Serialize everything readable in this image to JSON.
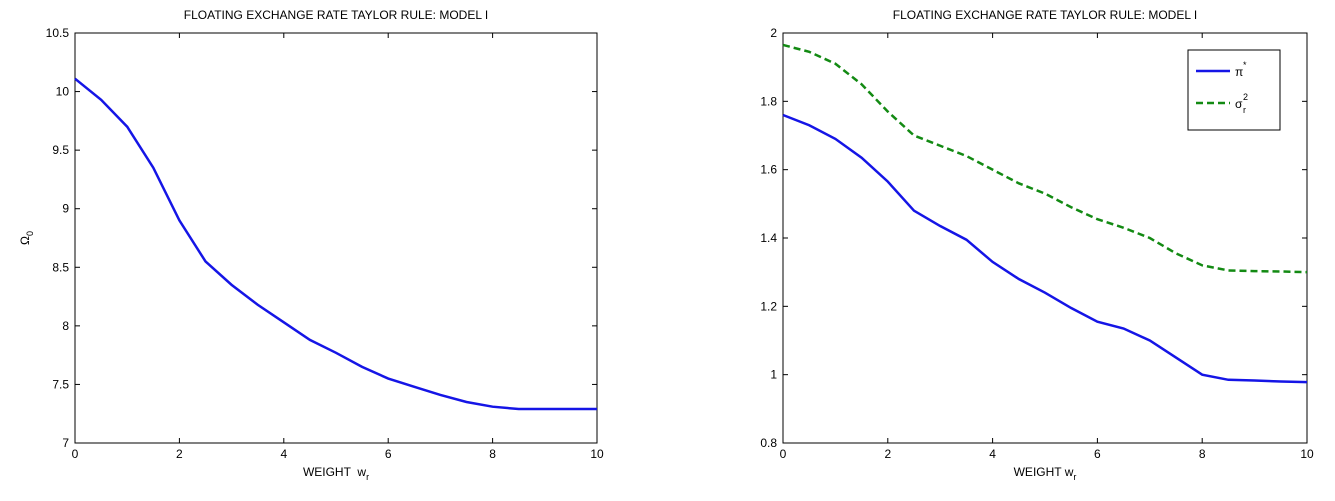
{
  "chart_data": [
    {
      "type": "line",
      "title": "FLOATING EXCHANGE RATE TAYLOR RULE: MODEL I",
      "x_label": "WEIGHT  w",
      "x_label_sub": "r",
      "y_label": "Ω",
      "y_label_sub": "0",
      "x": [
        0,
        0.5,
        1,
        1.5,
        2,
        2.5,
        3,
        3.5,
        4,
        4.5,
        5,
        5.5,
        6,
        6.5,
        7,
        7.5,
        8,
        8.5,
        9,
        9.5,
        10
      ],
      "series": [
        {
          "color": "#1515e6",
          "linestyle": "solid",
          "values": [
            10.11,
            9.93,
            9.7,
            9.35,
            8.9,
            8.55,
            8.35,
            8.18,
            8.03,
            7.88,
            7.77,
            7.65,
            7.55,
            7.48,
            7.41,
            7.35,
            7.31,
            7.29,
            7.29,
            7.29,
            7.29
          ]
        }
      ],
      "xlim": [
        0,
        10
      ],
      "xticks": [
        0,
        2,
        4,
        6,
        8,
        10
      ],
      "ylim": [
        7,
        10.5
      ],
      "yticks": [
        7,
        7.5,
        8,
        8.5,
        9,
        9.5,
        10,
        10.5
      ]
    },
    {
      "type": "line",
      "title": "FLOATING EXCHANGE RATE TAYLOR RULE: MODEL I",
      "x_label": "WEIGHT w",
      "x_label_sub": "r",
      "x": [
        0,
        0.5,
        1,
        1.5,
        2,
        2.5,
        3,
        3.5,
        4,
        4.5,
        5,
        5.5,
        6,
        6.5,
        7,
        7.5,
        8,
        8.5,
        9,
        9.5,
        10
      ],
      "series": [
        {
          "name": "π",
          "name_sup": "*",
          "color": "#1515e6",
          "linestyle": "solid",
          "values": [
            1.76,
            1.73,
            1.69,
            1.635,
            1.565,
            1.48,
            1.435,
            1.395,
            1.33,
            1.28,
            1.24,
            1.195,
            1.155,
            1.135,
            1.1,
            1.05,
            1.0,
            0.985,
            0.983,
            0.98,
            0.978
          ]
        },
        {
          "name": "σ",
          "name_sub": "r",
          "name_sup": "2",
          "color": "#138a13",
          "linestyle": "dashed",
          "values": [
            1.965,
            1.945,
            1.91,
            1.85,
            1.77,
            1.7,
            1.67,
            1.64,
            1.6,
            1.56,
            1.53,
            1.49,
            1.455,
            1.43,
            1.4,
            1.355,
            1.32,
            1.305,
            1.303,
            1.302,
            1.3
          ]
        }
      ],
      "xlim": [
        0,
        10
      ],
      "xticks": [
        0,
        2,
        4,
        6,
        8,
        10
      ],
      "ylim": [
        0.8,
        2
      ],
      "yticks": [
        0.8,
        1,
        1.2,
        1.4,
        1.6,
        1.8,
        2
      ],
      "legend": "upper right"
    }
  ]
}
